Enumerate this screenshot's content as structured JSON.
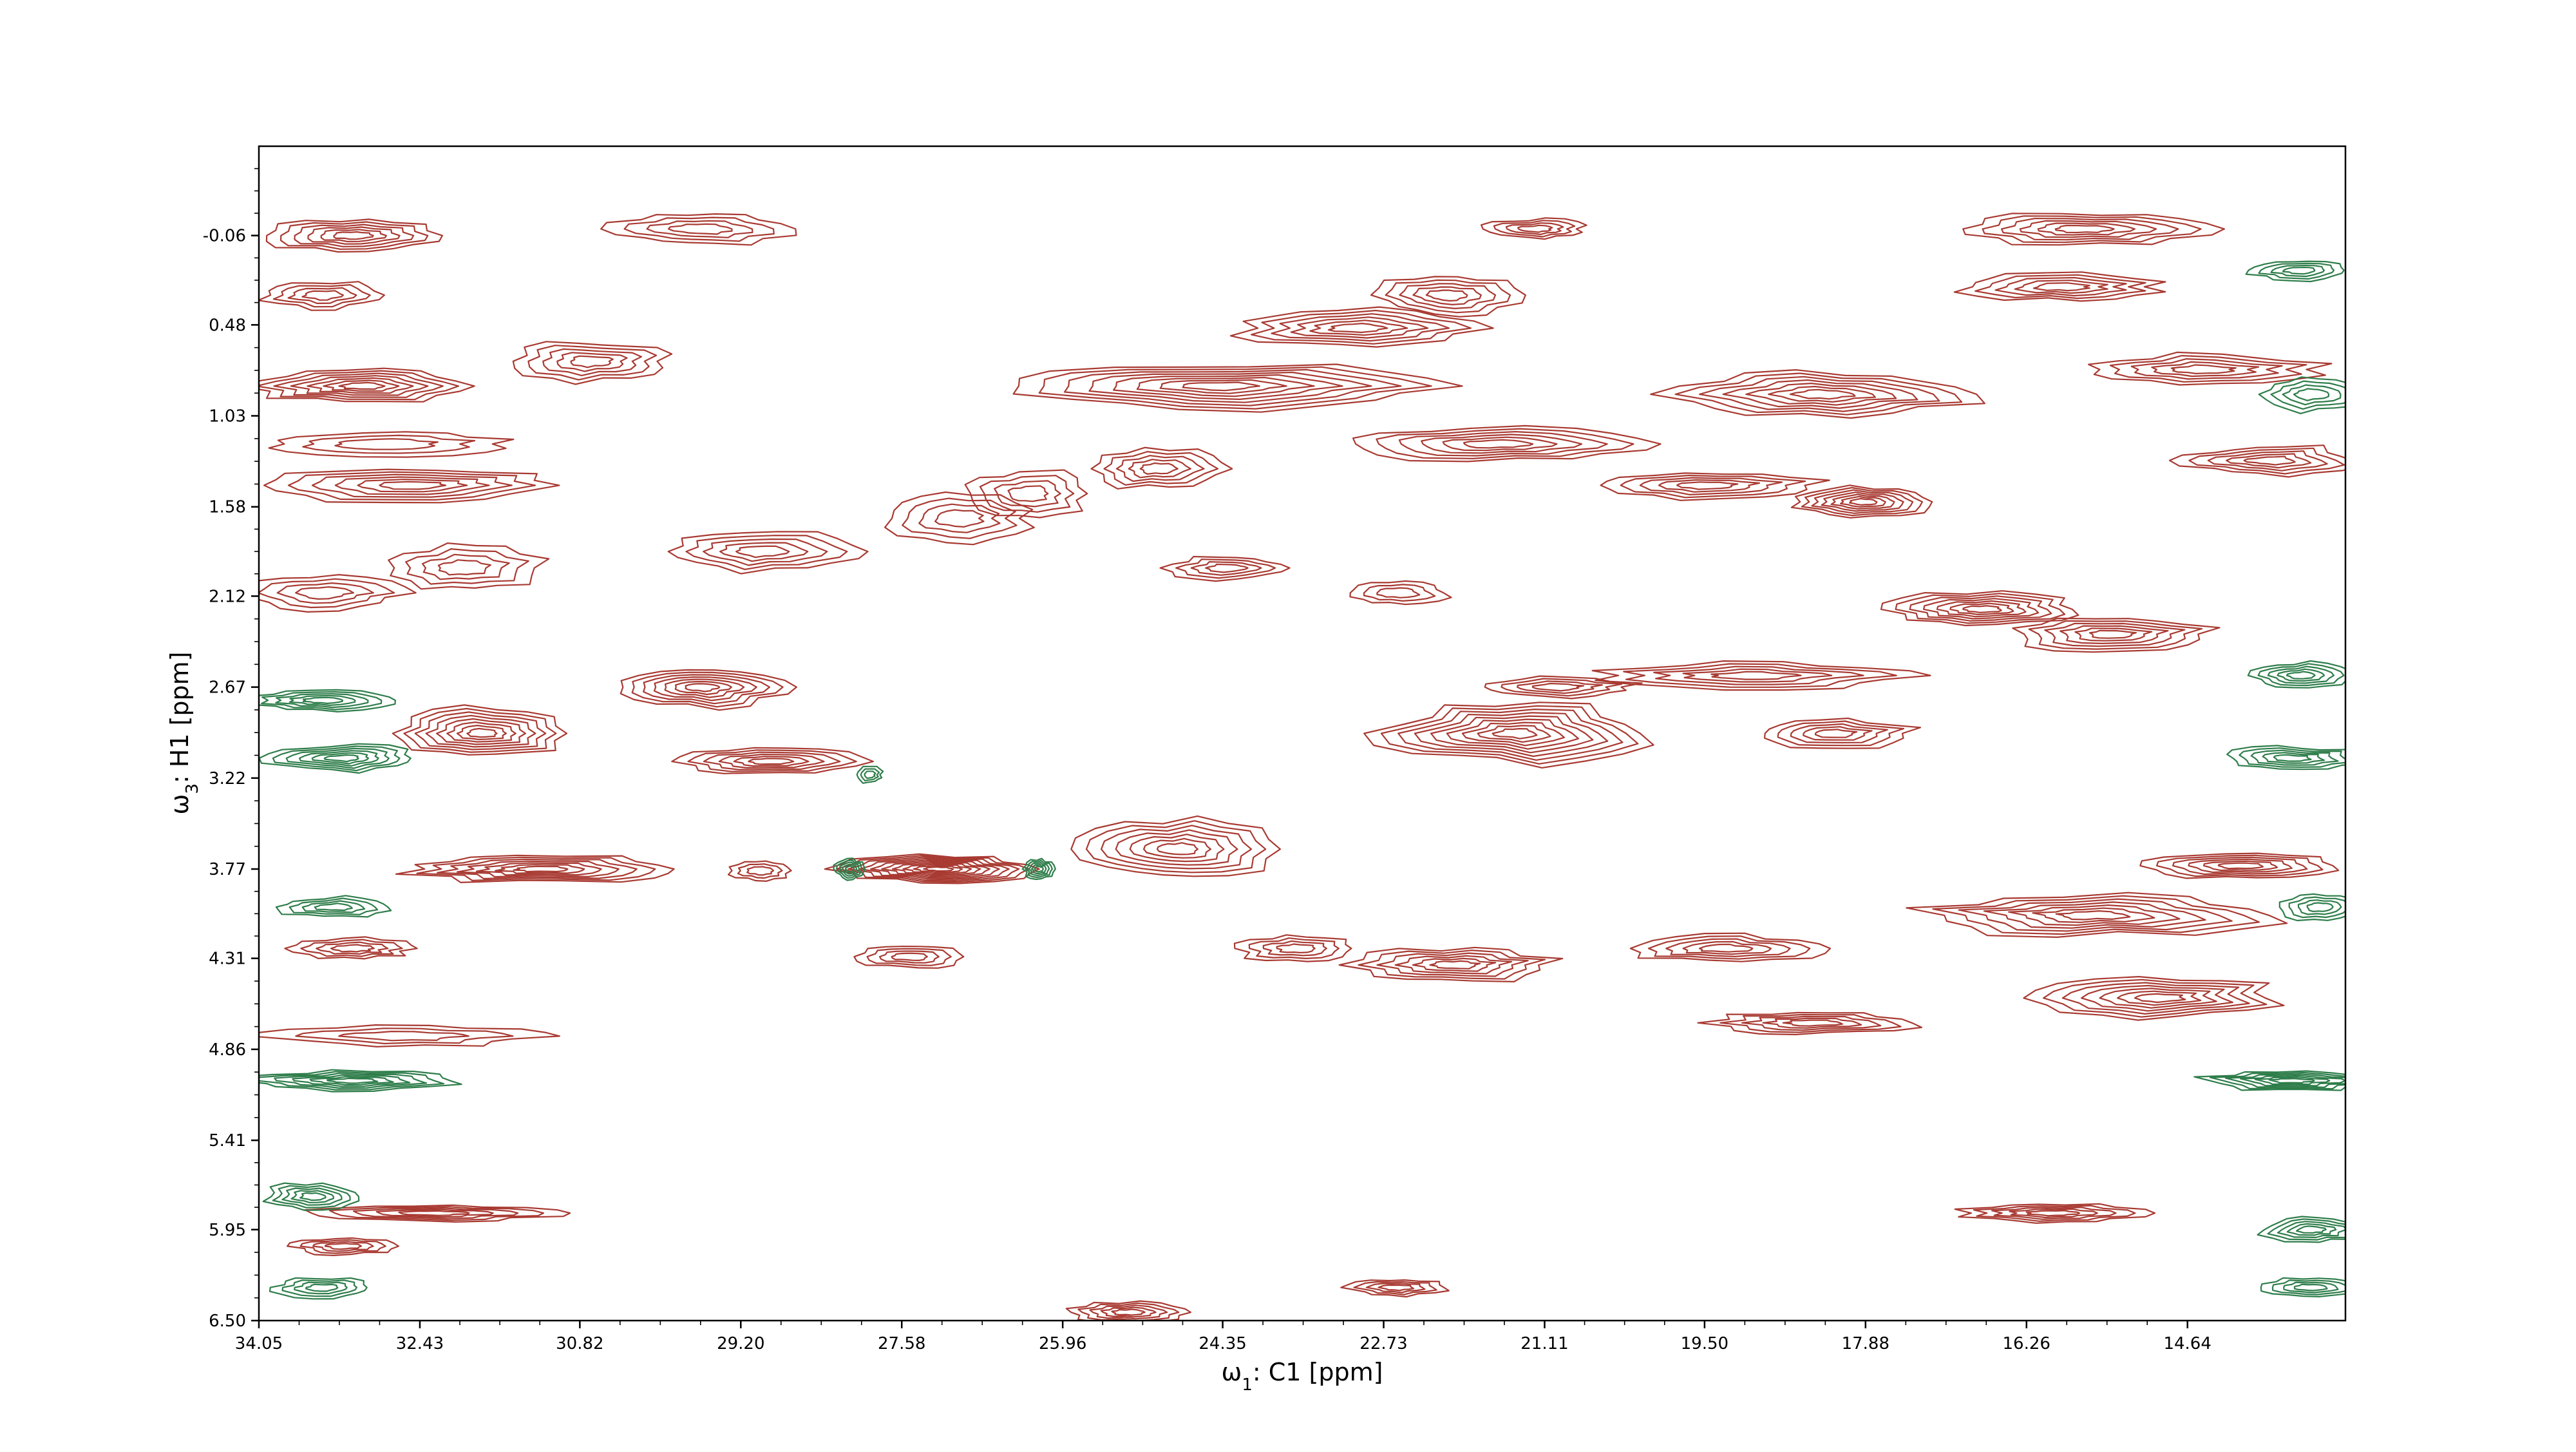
{
  "chart_data": {
    "type": "contour",
    "title": "",
    "xlabel": "ω1: C1 [ppm]",
    "ylabel": "ω3: H1 [ppm]",
    "xlim": [
      34.05,
      13.05
    ],
    "ylim": [
      6.5,
      -0.6
    ],
    "x_ticks": [
      "34.05",
      "32.43",
      "30.82",
      "29.20",
      "27.58",
      "25.96",
      "24.35",
      "22.73",
      "21.11",
      "19.50",
      "17.88",
      "16.26",
      "14.64"
    ],
    "y_ticks": [
      "-0.06",
      "0.48",
      "1.03",
      "1.58",
      "2.12",
      "2.67",
      "3.22",
      "3.77",
      "4.31",
      "4.86",
      "5.41",
      "5.95",
      "6.50"
    ],
    "x_tick_values": [
      34.05,
      32.43,
      30.82,
      29.2,
      27.58,
      25.96,
      24.35,
      22.73,
      21.11,
      19.5,
      17.88,
      16.26,
      14.64
    ],
    "y_tick_values": [
      -0.06,
      0.48,
      1.03,
      1.58,
      2.12,
      2.67,
      3.22,
      3.77,
      4.31,
      4.86,
      5.41,
      5.95,
      6.5
    ],
    "grid": false,
    "colors": {
      "positive": "#a83a32",
      "negative": "#2e7d4a"
    },
    "series": [
      {
        "sign": "positive",
        "peaks": [
          {
            "x": 33.1,
            "y": -0.06,
            "sx": 0.9,
            "sy": 0.1,
            "levels": 6
          },
          {
            "x": 33.4,
            "y": 0.3,
            "sx": 0.6,
            "sy": 0.08,
            "levels": 4
          },
          {
            "x": 33.0,
            "y": 0.85,
            "sx": 1.1,
            "sy": 0.1,
            "levels": 7
          },
          {
            "x": 32.5,
            "y": 1.45,
            "sx": 1.5,
            "sy": 0.1,
            "levels": 6
          },
          {
            "x": 32.8,
            "y": 1.2,
            "sx": 1.2,
            "sy": 0.07,
            "levels": 3
          },
          {
            "x": 30.7,
            "y": 0.7,
            "sx": 0.8,
            "sy": 0.12,
            "levels": 5
          },
          {
            "x": 29.6,
            "y": -0.1,
            "sx": 0.9,
            "sy": 0.1,
            "levels": 4
          },
          {
            "x": 32.0,
            "y": 1.95,
            "sx": 0.8,
            "sy": 0.14,
            "levels": 4
          },
          {
            "x": 29.0,
            "y": 1.85,
            "sx": 1.0,
            "sy": 0.12,
            "levels": 5
          },
          {
            "x": 27.0,
            "y": 1.65,
            "sx": 0.7,
            "sy": 0.14,
            "levels": 4
          },
          {
            "x": 26.3,
            "y": 1.5,
            "sx": 0.6,
            "sy": 0.14,
            "levels": 4
          },
          {
            "x": 25.0,
            "y": 1.35,
            "sx": 0.7,
            "sy": 0.12,
            "levels": 5
          },
          {
            "x": 24.4,
            "y": 0.85,
            "sx": 2.2,
            "sy": 0.14,
            "levels": 8
          },
          {
            "x": 23.0,
            "y": 0.5,
            "sx": 1.2,
            "sy": 0.12,
            "levels": 6
          },
          {
            "x": 22.1,
            "y": 0.3,
            "sx": 0.7,
            "sy": 0.12,
            "levels": 5
          },
          {
            "x": 21.6,
            "y": 1.2,
            "sx": 1.5,
            "sy": 0.1,
            "levels": 6
          },
          {
            "x": 24.3,
            "y": 1.95,
            "sx": 0.6,
            "sy": 0.07,
            "levels": 4
          },
          {
            "x": 22.6,
            "y": 2.1,
            "sx": 0.5,
            "sy": 0.07,
            "levels": 3
          },
          {
            "x": 21.2,
            "y": -0.1,
            "sx": 0.5,
            "sy": 0.06,
            "levels": 4
          },
          {
            "x": 18.3,
            "y": 0.9,
            "sx": 1.5,
            "sy": 0.14,
            "levels": 7
          },
          {
            "x": 19.5,
            "y": 1.45,
            "sx": 1.2,
            "sy": 0.08,
            "levels": 5
          },
          {
            "x": 17.9,
            "y": 1.55,
            "sx": 0.7,
            "sy": 0.09,
            "levels": 7
          },
          {
            "x": 15.7,
            "y": -0.1,
            "sx": 1.3,
            "sy": 0.1,
            "levels": 6
          },
          {
            "x": 15.9,
            "y": 0.25,
            "sx": 1.0,
            "sy": 0.08,
            "levels": 5
          },
          {
            "x": 14.5,
            "y": 0.75,
            "sx": 1.2,
            "sy": 0.09,
            "levels": 5
          },
          {
            "x": 13.8,
            "y": 1.3,
            "sx": 0.9,
            "sy": 0.09,
            "levels": 5
          },
          {
            "x": 16.7,
            "y": 2.2,
            "sx": 1.0,
            "sy": 0.1,
            "levels": 7
          },
          {
            "x": 15.4,
            "y": 2.35,
            "sx": 1.0,
            "sy": 0.1,
            "levels": 6
          },
          {
            "x": 33.4,
            "y": 2.1,
            "sx": 0.8,
            "sy": 0.1,
            "levels": 4
          },
          {
            "x": 29.6,
            "y": 2.67,
            "sx": 0.9,
            "sy": 0.12,
            "levels": 7
          },
          {
            "x": 31.8,
            "y": 2.95,
            "sx": 0.9,
            "sy": 0.15,
            "levels": 8
          },
          {
            "x": 28.9,
            "y": 3.12,
            "sx": 0.9,
            "sy": 0.08,
            "levels": 6
          },
          {
            "x": 21.4,
            "y": 2.95,
            "sx": 1.3,
            "sy": 0.18,
            "levels": 9
          },
          {
            "x": 19.0,
            "y": 2.6,
            "sx": 1.6,
            "sy": 0.08,
            "levels": 5
          },
          {
            "x": 18.2,
            "y": 2.95,
            "sx": 0.8,
            "sy": 0.09,
            "levels": 5
          },
          {
            "x": 31.2,
            "y": 3.77,
            "sx": 1.4,
            "sy": 0.08,
            "levels": 7
          },
          {
            "x": 27.2,
            "y": 3.77,
            "sx": 1.0,
            "sy": 0.08,
            "levels": 10
          },
          {
            "x": 24.8,
            "y": 3.65,
            "sx": 1.0,
            "sy": 0.18,
            "levels": 7
          },
          {
            "x": 29.0,
            "y": 3.78,
            "sx": 0.3,
            "sy": 0.06,
            "levels": 3
          },
          {
            "x": 15.6,
            "y": 4.05,
            "sx": 1.8,
            "sy": 0.12,
            "levels": 7
          },
          {
            "x": 14.1,
            "y": 3.75,
            "sx": 1.0,
            "sy": 0.08,
            "levels": 6
          },
          {
            "x": 22.0,
            "y": 4.35,
            "sx": 1.0,
            "sy": 0.1,
            "levels": 6
          },
          {
            "x": 19.3,
            "y": 4.25,
            "sx": 1.0,
            "sy": 0.08,
            "levels": 5
          },
          {
            "x": 23.6,
            "y": 4.25,
            "sx": 0.6,
            "sy": 0.08,
            "levels": 4
          },
          {
            "x": 27.5,
            "y": 4.3,
            "sx": 0.5,
            "sy": 0.07,
            "levels": 4
          },
          {
            "x": 14.9,
            "y": 4.55,
            "sx": 1.2,
            "sy": 0.12,
            "levels": 7
          },
          {
            "x": 18.4,
            "y": 4.7,
            "sx": 1.0,
            "sy": 0.07,
            "levels": 5
          },
          {
            "x": 33.1,
            "y": 4.25,
            "sx": 0.6,
            "sy": 0.06,
            "levels": 4
          },
          {
            "x": 32.6,
            "y": 4.78,
            "sx": 1.4,
            "sy": 0.06,
            "levels": 3
          },
          {
            "x": 32.3,
            "y": 5.85,
            "sx": 1.2,
            "sy": 0.05,
            "levels": 5
          },
          {
            "x": 16.0,
            "y": 5.85,
            "sx": 0.9,
            "sy": 0.06,
            "levels": 5
          },
          {
            "x": 33.2,
            "y": 6.05,
            "sx": 0.5,
            "sy": 0.05,
            "levels": 4
          },
          {
            "x": 25.3,
            "y": 6.45,
            "sx": 0.6,
            "sy": 0.06,
            "levels": 5
          },
          {
            "x": 22.6,
            "y": 6.3,
            "sx": 0.5,
            "sy": 0.05,
            "levels": 4
          },
          {
            "x": 21.0,
            "y": 2.67,
            "sx": 0.8,
            "sy": 0.06,
            "levels": 4
          }
        ]
      },
      {
        "sign": "negative",
        "peaks": [
          {
            "x": 33.4,
            "y": 2.75,
            "sx": 0.7,
            "sy": 0.06,
            "levels": 5
          },
          {
            "x": 33.2,
            "y": 3.1,
            "sx": 0.8,
            "sy": 0.08,
            "levels": 6
          },
          {
            "x": 28.1,
            "y": 3.77,
            "sx": 0.15,
            "sy": 0.06,
            "levels": 5
          },
          {
            "x": 26.2,
            "y": 3.77,
            "sx": 0.15,
            "sy": 0.06,
            "levels": 5
          },
          {
            "x": 27.9,
            "y": 3.2,
            "sx": 0.12,
            "sy": 0.05,
            "levels": 3
          },
          {
            "x": 33.1,
            "y": 5.05,
            "sx": 1.1,
            "sy": 0.06,
            "levels": 6
          },
          {
            "x": 33.3,
            "y": 4.0,
            "sx": 0.6,
            "sy": 0.06,
            "levels": 4
          },
          {
            "x": 33.5,
            "y": 5.75,
            "sx": 0.5,
            "sy": 0.08,
            "levels": 5
          },
          {
            "x": 33.4,
            "y": 6.3,
            "sx": 0.5,
            "sy": 0.06,
            "levels": 4
          },
          {
            "x": 13.6,
            "y": 5.05,
            "sx": 0.9,
            "sy": 0.06,
            "levels": 6
          },
          {
            "x": 13.5,
            "y": 2.6,
            "sx": 0.5,
            "sy": 0.08,
            "levels": 5
          },
          {
            "x": 13.6,
            "y": 3.1,
            "sx": 0.7,
            "sy": 0.07,
            "levels": 5
          },
          {
            "x": 13.4,
            "y": 5.95,
            "sx": 0.5,
            "sy": 0.08,
            "levels": 5
          },
          {
            "x": 13.4,
            "y": 6.3,
            "sx": 0.5,
            "sy": 0.06,
            "levels": 4
          },
          {
            "x": 13.4,
            "y": 0.9,
            "sx": 0.5,
            "sy": 0.1,
            "levels": 4
          },
          {
            "x": 13.5,
            "y": 0.15,
            "sx": 0.5,
            "sy": 0.06,
            "levels": 4
          },
          {
            "x": 13.3,
            "y": 4.0,
            "sx": 0.4,
            "sy": 0.08,
            "levels": 4
          }
        ]
      }
    ]
  }
}
